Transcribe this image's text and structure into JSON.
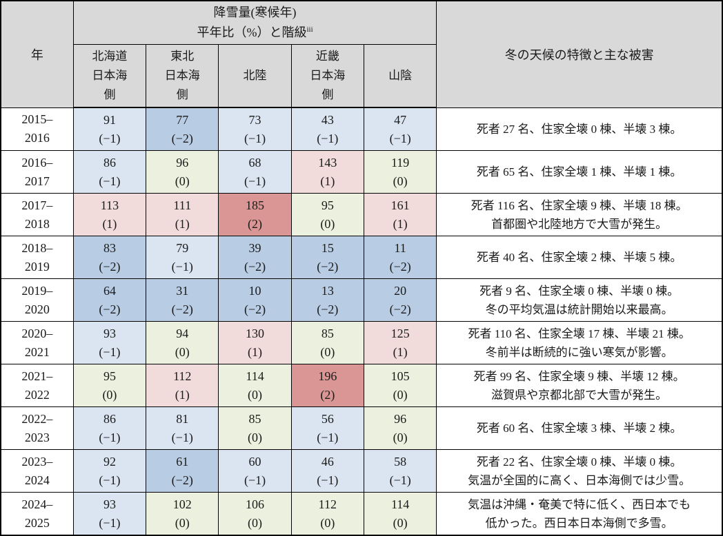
{
  "table": {
    "header": {
      "year_label": "年",
      "snowfall_title_line1": "降雪量(寒候年)",
      "snowfall_title_line2": "平年比（%）と階級",
      "snowfall_title_superscript": "iii",
      "features_label": "冬の天候の特徴と主な被害",
      "regions": [
        {
          "label": "北海道\n日本海\n側"
        },
        {
          "label": "東北\n日本海\n側"
        },
        {
          "label": "北陸"
        },
        {
          "label": "近畿\n日本海\n側"
        },
        {
          "label": "山陰"
        }
      ]
    },
    "legend_colors": {
      "header_bg": "#d9d9d9",
      "-2": "#b8cce4",
      "-1": "#dbe5f1",
      "0": "#ebf1de",
      "1": "#f2dbdb",
      "2": "#d99694"
    },
    "rows": [
      {
        "year": "2015–\n2016",
        "cells": [
          {
            "value": 91,
            "level": -1,
            "label": "(−1)"
          },
          {
            "value": 77,
            "level": -2,
            "label": "(−2)"
          },
          {
            "value": 73,
            "level": -1,
            "label": "(−1)"
          },
          {
            "value": 43,
            "level": -1,
            "label": "(−1)"
          },
          {
            "value": 47,
            "level": -1,
            "label": "(−1)"
          }
        ],
        "features": "死者 27 名、住家全壊 0 棟、半壊 3 棟。"
      },
      {
        "year": "2016–\n2017",
        "cells": [
          {
            "value": 86,
            "level": -1,
            "label": "(−1)"
          },
          {
            "value": 96,
            "level": 0,
            "label": "(0)"
          },
          {
            "value": 68,
            "level": -1,
            "label": "(−1)"
          },
          {
            "value": 143,
            "level": 1,
            "label": "(1)"
          },
          {
            "value": 119,
            "level": 0,
            "label": "(0)"
          }
        ],
        "features": "死者 65 名、住家全壊 1 棟、半壊 1 棟。"
      },
      {
        "year": "2017–\n2018",
        "cells": [
          {
            "value": 113,
            "level": 1,
            "label": "(1)"
          },
          {
            "value": 111,
            "level": 1,
            "label": "(1)"
          },
          {
            "value": 185,
            "level": 2,
            "label": "(2)"
          },
          {
            "value": 95,
            "level": 0,
            "label": "(0)"
          },
          {
            "value": 161,
            "level": 1,
            "label": "(1)"
          }
        ],
        "features": "死者 116 名、住家全壊 9 棟、半壊 18 棟。\n首都圏や北陸地方で大雪が発生。"
      },
      {
        "year": "2018–\n2019",
        "cells": [
          {
            "value": 83,
            "level": -2,
            "label": "(−2)"
          },
          {
            "value": 79,
            "level": -1,
            "label": "(−1)"
          },
          {
            "value": 39,
            "level": -2,
            "label": "(−2)"
          },
          {
            "value": 15,
            "level": -2,
            "label": "(−2)"
          },
          {
            "value": 11,
            "level": -2,
            "label": "(−2)"
          }
        ],
        "features": "死者 40 名、住家全壊 2 棟、半壊 5 棟。"
      },
      {
        "year": "2019–\n2020",
        "cells": [
          {
            "value": 64,
            "level": -2,
            "label": "(−2)"
          },
          {
            "value": 31,
            "level": -2,
            "label": "(−2)"
          },
          {
            "value": 10,
            "level": -2,
            "label": "(−2)"
          },
          {
            "value": 13,
            "level": -2,
            "label": "(−2)"
          },
          {
            "value": 20,
            "level": -2,
            "label": "(−2)"
          }
        ],
        "features": "死者 9 名、住家全壊 0 棟、半壊 0 棟。\n冬の平均気温は統計開始以来最高。"
      },
      {
        "year": "2020–\n2021",
        "cells": [
          {
            "value": 93,
            "level": -1,
            "label": "(−1)"
          },
          {
            "value": 94,
            "level": 0,
            "label": "(0)"
          },
          {
            "value": 130,
            "level": 1,
            "label": "(1)"
          },
          {
            "value": 85,
            "level": 0,
            "label": "(0)"
          },
          {
            "value": 125,
            "level": 1,
            "label": "(1)"
          }
        ],
        "features": "死者 110 名、住家全壊 17 棟、半壊 21 棟。\n冬前半は断続的に強い寒気が影響。"
      },
      {
        "year": "2021–\n2022",
        "cells": [
          {
            "value": 95,
            "level": 0,
            "label": "(0)"
          },
          {
            "value": 112,
            "level": 1,
            "label": "(1)"
          },
          {
            "value": 114,
            "level": 0,
            "label": "(0)"
          },
          {
            "value": 196,
            "level": 2,
            "label": "(2)"
          },
          {
            "value": 105,
            "level": 0,
            "label": "(0)"
          }
        ],
        "features": "死者 99 名、住家全壊 9 棟、半壊 12 棟。\n滋賀県や京都北部で大雪が発生。"
      },
      {
        "year": "2022–\n2023",
        "cells": [
          {
            "value": 86,
            "level": -1,
            "label": "(−1)"
          },
          {
            "value": 81,
            "level": -1,
            "label": "(−1)"
          },
          {
            "value": 85,
            "level": 0,
            "label": "(0)"
          },
          {
            "value": 56,
            "level": -1,
            "label": "(−1)"
          },
          {
            "value": 96,
            "level": 0,
            "label": "(0)"
          }
        ],
        "features": "死者 60 名、住家全壊 3 棟、半壊 2 棟。"
      },
      {
        "year": "2023–\n2024",
        "cells": [
          {
            "value": 92,
            "level": -1,
            "label": "(−1)"
          },
          {
            "value": 61,
            "level": -2,
            "label": "(−2)"
          },
          {
            "value": 60,
            "level": -1,
            "label": "(−1)"
          },
          {
            "value": 46,
            "level": -1,
            "label": "(−1)"
          },
          {
            "value": 58,
            "level": -1,
            "label": "(−1)"
          }
        ],
        "features": "死者 22 名、住家全壊 0 棟、半壊 0 棟。\n気温が全国的に高く、日本海側では少雪。"
      },
      {
        "year": "2024–\n2025",
        "cells": [
          {
            "value": 93,
            "level": -1,
            "label": "(−1)"
          },
          {
            "value": 102,
            "level": 0,
            "label": "(0)"
          },
          {
            "value": 106,
            "level": 0,
            "label": "(0)"
          },
          {
            "value": 112,
            "level": 0,
            "label": "(0)"
          },
          {
            "value": 114,
            "level": 0,
            "label": "(0)"
          }
        ],
        "features": "気温は沖縄・奄美で特に低く、西日本でも\n低かった。西日本日本海側で多雪。"
      }
    ]
  }
}
